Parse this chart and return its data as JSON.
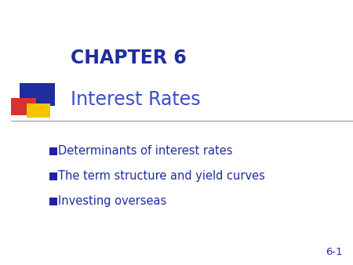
{
  "background_color": "#ffffff",
  "title_line1": "CHAPTER 6",
  "title_line2": "Interest Rates",
  "title_color": "#1F2D9E",
  "subtitle_color": "#3A4FC8",
  "bullet_points": [
    "Determinants of interest rates",
    "The term structure and yield curves",
    "Investing overseas"
  ],
  "bullet_color": "#1F2D9E",
  "bullet_square_color": "#2020AA",
  "page_number": "6-1",
  "page_number_color": "#1F2D9E",
  "decor_blue": "#1F2D9E",
  "decor_red": "#D93030",
  "decor_yellow": "#F5C400",
  "line_color": "#999999",
  "title1_fontsize": 17,
  "title2_fontsize": 17,
  "bullet_fontsize": 10.5,
  "page_fontsize": 9.5
}
